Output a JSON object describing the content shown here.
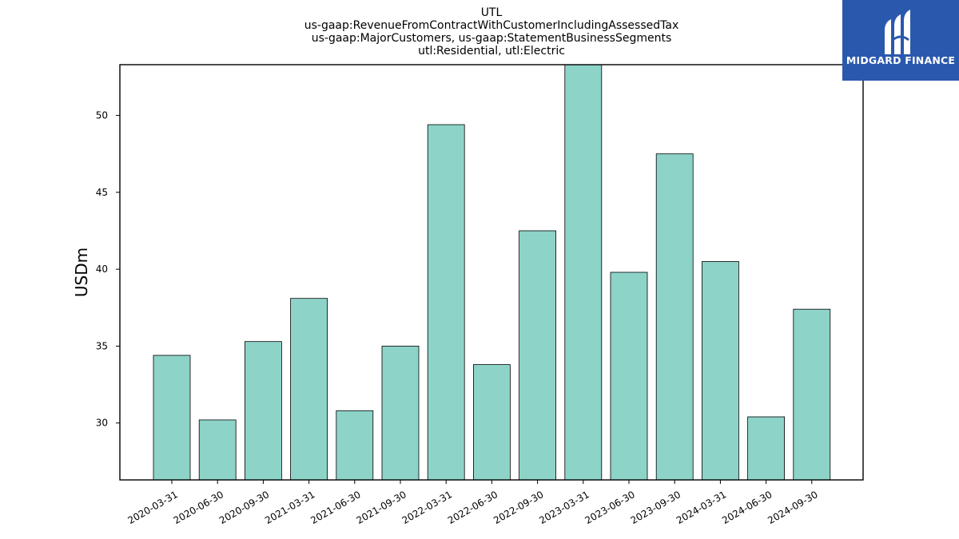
{
  "chart_data": {
    "type": "bar",
    "title_lines": [
      "UTL",
      "us-gaap:RevenueFromContractWithCustomerIncludingAssessedTax",
      "us-gaap:MajorCustomers, us-gaap:StatementBusinessSegments",
      "utl:Residential, utl:Electric"
    ],
    "xlabel": "",
    "ylabel": "USDm",
    "categories": [
      "2020-03-31",
      "2020-06-30",
      "2020-09-30",
      "2021-03-31",
      "2021-06-30",
      "2021-09-30",
      "2022-03-31",
      "2022-06-30",
      "2022-09-30",
      "2023-03-31",
      "2023-06-30",
      "2023-09-30",
      "2024-03-31",
      "2024-06-30",
      "2024-09-30"
    ],
    "values": [
      34.4,
      30.2,
      35.3,
      38.1,
      30.8,
      35.0,
      49.4,
      33.8,
      42.5,
      53.4,
      39.8,
      47.5,
      40.5,
      30.4,
      37.4
    ],
    "ylim": [
      26.3,
      53.3
    ],
    "yticks": [
      30,
      35,
      40,
      45,
      50
    ],
    "bar_color": "#8dd3c7",
    "grid": false,
    "legend": "none"
  },
  "logo": {
    "text": "MIDGARD FINANCE",
    "background": "#2a58ad"
  }
}
